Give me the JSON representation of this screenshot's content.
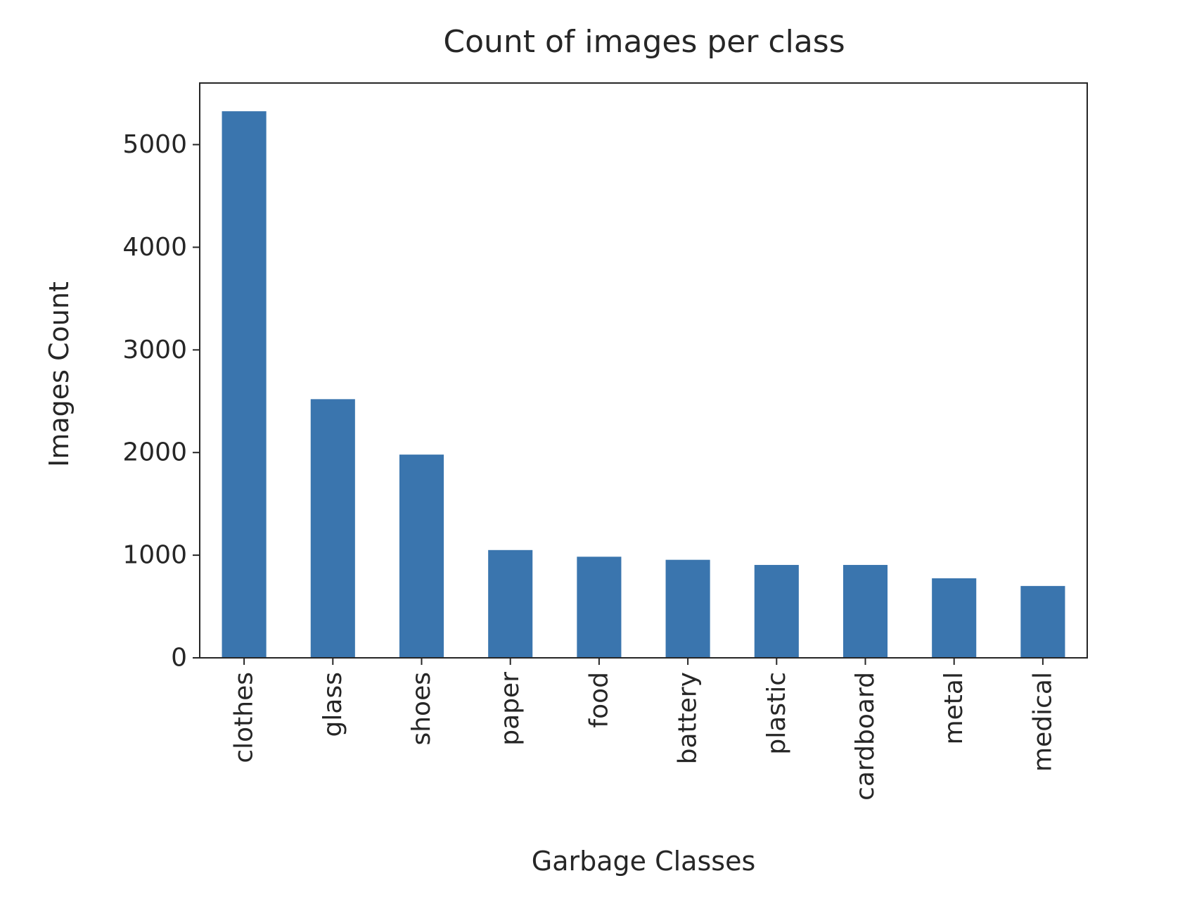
{
  "colors": {
    "bar": "#3a75ae",
    "axis": "#262626",
    "background": "#ffffff"
  },
  "chart_data": {
    "type": "bar",
    "title": "Count of images per class",
    "xlabel": "Garbage Classes",
    "ylabel": "Images Count",
    "categories": [
      "clothes",
      "glass",
      "shoes",
      "paper",
      "food",
      "battery",
      "plastic",
      "cardboard",
      "metal",
      "medical"
    ],
    "values": [
      5325,
      2520,
      1980,
      1050,
      985,
      955,
      905,
      905,
      775,
      700
    ],
    "ylim": [
      0,
      5600
    ],
    "yticks": [
      0,
      1000,
      2000,
      3000,
      4000,
      5000
    ],
    "ytick_labels": [
      "0",
      "1000",
      "2000",
      "3000",
      "4000",
      "5000"
    ],
    "grid": false,
    "legend": "none"
  }
}
